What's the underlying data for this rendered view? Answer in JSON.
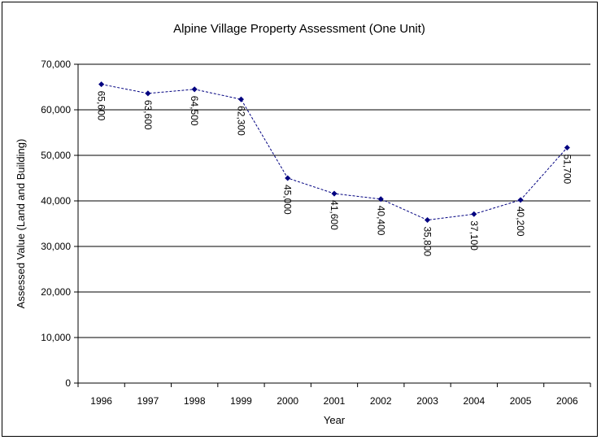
{
  "chart_data": {
    "type": "line",
    "title": "Alpine Village Property Assessment (One Unit)",
    "xlabel": "Year",
    "ylabel": "Assessed Value (Land and Building)",
    "categories": [
      "1996",
      "1997",
      "1998",
      "1999",
      "2000",
      "2001",
      "2002",
      "2003",
      "2004",
      "2005",
      "2006"
    ],
    "series": [
      {
        "values": [
          65600,
          63600,
          64500,
          62300,
          45000,
          41600,
          40400,
          35800,
          37100,
          40200,
          51700
        ],
        "labels": [
          "65,600",
          "63,600",
          "64,500",
          "62,300",
          "45,000",
          "41,600",
          "40,400",
          "35,800",
          "37,100",
          "40,200",
          "51,700"
        ]
      }
    ],
    "ylim": [
      0,
      70000
    ],
    "yticks": [
      "0",
      "10,000",
      "20,000",
      "30,000",
      "40,000",
      "50,000",
      "60,000",
      "70,000"
    ],
    "grid": true,
    "line_color": "#000080",
    "marker_color": "#000080"
  }
}
